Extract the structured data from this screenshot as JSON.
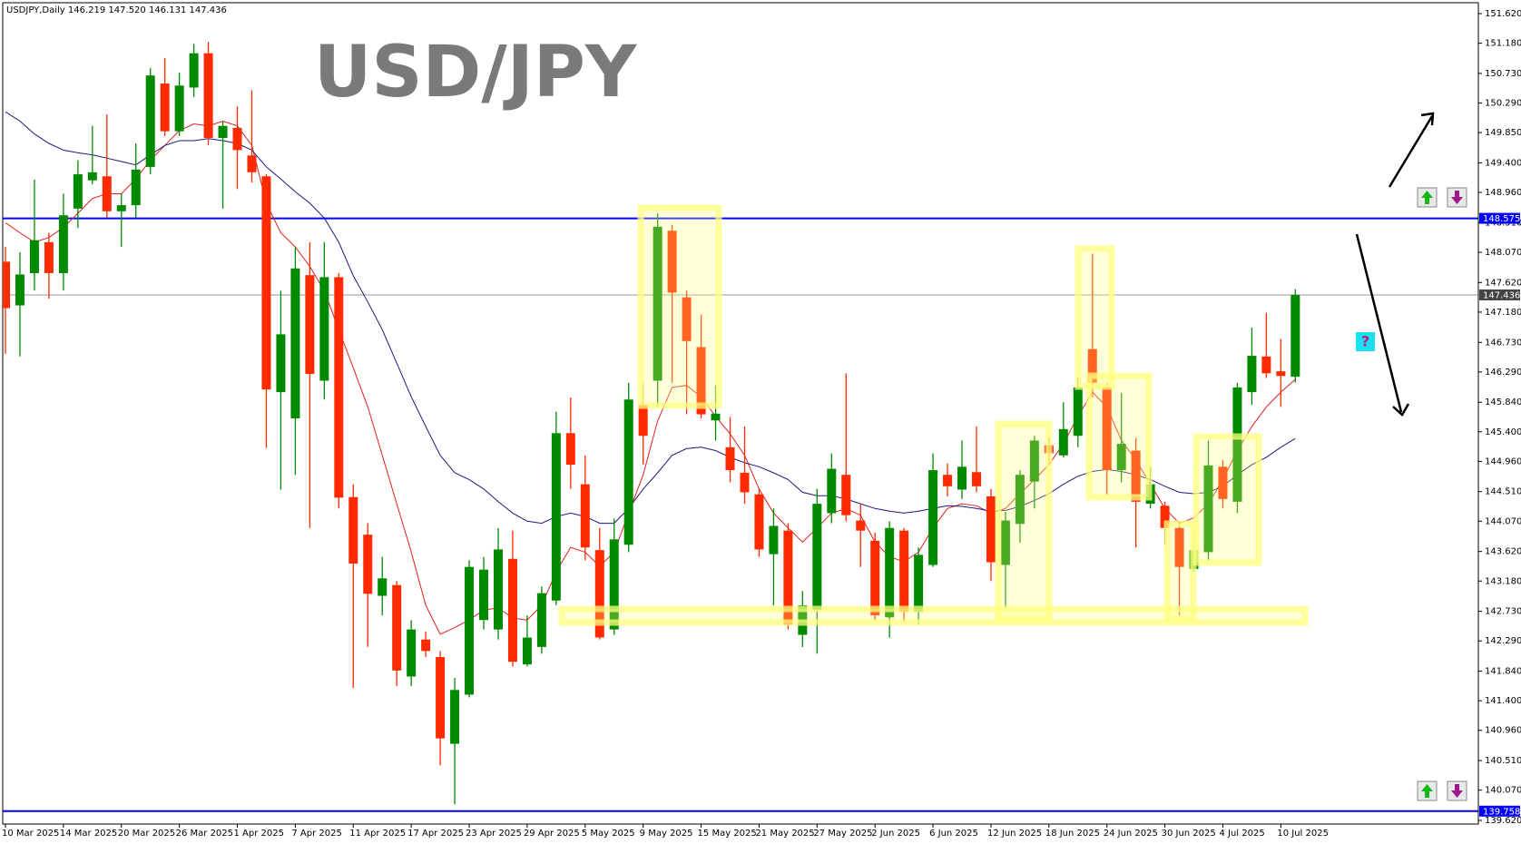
{
  "chart_data": {
    "type": "candlestick",
    "title": "USD/JPY",
    "subtitle": "USDJPY,Daily  146.219 147.520 146.131 147.436",
    "categories": [
      "10 Mar 2025",
      null,
      null,
      null,
      "14 Mar 2025",
      null,
      null,
      null,
      "20 Mar 2025",
      null,
      null,
      null,
      "26 Mar 2025",
      null,
      null,
      null,
      "1 Apr 2025",
      null,
      null,
      null,
      "7 Apr 2025",
      null,
      null,
      null,
      "11 Apr 2025",
      null,
      null,
      null,
      "17 Apr 2025",
      null,
      null,
      null,
      "23 Apr 2025",
      null,
      null,
      null,
      "29 Apr 2025",
      null,
      null,
      null,
      "5 May 2025",
      null,
      null,
      null,
      "9 May 2025",
      null,
      null,
      null,
      "15 May 2025",
      null,
      null,
      null,
      "21 May 2025",
      null,
      null,
      null,
      "27 May 2025",
      null,
      null,
      null,
      "2 Jun 2025",
      null,
      null,
      null,
      "6 Jun 2025",
      null,
      null,
      null,
      "12 Jun 2025",
      null,
      null,
      null,
      "18 Jun 2025",
      null,
      null,
      null,
      "24 Jun 2025",
      null,
      null,
      null,
      "30 Jun 2025",
      null,
      null,
      null,
      "4 Jul 2025",
      null,
      null,
      null,
      "10 Jul 2025",
      null
    ],
    "open": [
      147.93,
      147.28,
      147.76,
      148.22,
      147.76,
      148.72,
      149.14,
      149.2,
      148.68,
      148.77,
      149.34,
      150.58,
      149.87,
      150.52,
      151.03,
      149.77,
      149.92,
      149.51,
      149.2,
      145.99,
      145.6,
      147.73,
      146.16,
      147.7,
      144.43,
      143.87,
      142.96,
      143.12,
      141.76,
      142.31,
      142.05,
      140.76,
      141.49,
      142.6,
      142.46,
      143.51,
      141.94,
      142.2,
      142.89,
      145.38,
      144.62,
      143.64,
      142.46,
      143.72,
      145.8,
      146.16,
      148.39,
      147.4,
      146.66,
      145.57,
      145.17,
      144.79,
      144.47,
      143.58,
      143.93,
      142.38,
      142.75,
      144.19,
      144.76,
      144.08,
      143.78,
      142.64,
      143.93,
      142.72,
      143.42,
      144.76,
      144.54,
      144.8,
      144.44,
      143.42,
      144.03,
      144.66,
      145.2,
      145.05,
      145.34,
      146.63,
      146.06,
      144.83,
      145.12,
      144.33,
      144.3,
      143.97,
      143.36,
      143.61,
      144.88,
      144.36,
      145.99,
      146.52,
      146.3,
      146.219
    ],
    "high": [
      148.15,
      148.07,
      149.15,
      148.36,
      148.94,
      149.44,
      149.95,
      150.12,
      148.94,
      149.69,
      150.81,
      150.96,
      150.74,
      151.17,
      151.2,
      150.02,
      150.24,
      150.48,
      149.23,
      147.5,
      148.15,
      148.22,
      148.22,
      147.76,
      144.62,
      144.04,
      143.54,
      143.18,
      142.6,
      142.43,
      142.14,
      141.74,
      143.49,
      143.54,
      143.97,
      143.93,
      142.67,
      143.1,
      145.7,
      145.91,
      145.05,
      143.97,
      144.11,
      146.13,
      146.13,
      148.65,
      148.48,
      147.5,
      147.14,
      146.09,
      145.62,
      145.48,
      144.55,
      144.26,
      144.04,
      143.03,
      144.55,
      145.08,
      146.27,
      144.33,
      143.9,
      144.07,
      143.97,
      143.68,
      145.08,
      144.93,
      145.27,
      145.48,
      144.55,
      144.21,
      144.83,
      145.34,
      145.31,
      145.84,
      146.2,
      148.05,
      146.13,
      145.98,
      145.31,
      144.88,
      144.36,
      144.07,
      143.97,
      145.27,
      144.98,
      146.13,
      146.95,
      147.17,
      146.78,
      147.52
    ],
    "low": [
      146.56,
      146.52,
      147.5,
      147.38,
      147.5,
      148.43,
      149.08,
      148.58,
      148.15,
      148.58,
      149.23,
      149.8,
      149.8,
      150.38,
      149.66,
      148.72,
      149.01,
      149.11,
      145.16,
      144.54,
      144.76,
      143.97,
      145.88,
      144.26,
      141.59,
      142.2,
      142.67,
      141.62,
      141.62,
      142.05,
      140.44,
      139.86,
      141.45,
      142.46,
      142.31,
      141.91,
      141.91,
      142.1,
      142.82,
      144.55,
      143.49,
      142.31,
      142.38,
      143.61,
      144.91,
      145.77,
      146.13,
      145.66,
      145.6,
      145.27,
      144.65,
      144.33,
      143.54,
      142.82,
      142.46,
      142.2,
      142.1,
      144.04,
      144.07,
      143.39,
      142.6,
      142.34,
      142.57,
      142.53,
      143.39,
      144.44,
      144.4,
      144.5,
      143.18,
      142.77,
      143.75,
      144.26,
      144.91,
      145.02,
      145.17,
      145.91,
      144.47,
      144.65,
      143.68,
      144.26,
      143.72,
      142.67,
      143.32,
      143.49,
      144.26,
      144.19,
      145.8,
      146.2,
      145.77,
      146.131
    ],
    "close": [
      147.24,
      147.74,
      148.25,
      147.76,
      148.62,
      149.23,
      149.26,
      148.68,
      148.77,
      149.3,
      150.7,
      149.87,
      150.55,
      151.03,
      149.77,
      149.95,
      149.59,
      149.26,
      146.03,
      146.85,
      147.83,
      146.26,
      147.7,
      144.42,
      143.44,
      142.99,
      143.22,
      141.85,
      142.46,
      142.14,
      140.84,
      141.56,
      143.39,
      143.35,
      143.65,
      141.98,
      142.34,
      143.0,
      145.38,
      144.91,
      143.68,
      142.34,
      143.8,
      145.88,
      145.34,
      148.45,
      147.47,
      146.75,
      145.66,
      145.67,
      144.83,
      144.5,
      143.65,
      144.0,
      142.53,
      142.82,
      144.33,
      144.85,
      144.16,
      143.93,
      142.67,
      143.97,
      142.72,
      143.57,
      144.83,
      144.59,
      144.88,
      144.59,
      143.46,
      144.08,
      144.76,
      145.27,
      145.08,
      145.44,
      146.06,
      146.13,
      144.83,
      145.22,
      144.36,
      144.62,
      143.97,
      143.39,
      143.64,
      144.9,
      144.4,
      146.06,
      146.53,
      146.27,
      146.23,
      147.436
    ],
    "up_color": "#008a00",
    "down_color": "#ff2a00",
    "lines": [
      {
        "color": "#e0201a",
        "values": [
          148.51,
          148.36,
          148.22,
          148.29,
          148.44,
          148.65,
          148.87,
          148.94,
          148.94,
          149.16,
          149.44,
          149.66,
          149.88,
          149.98,
          149.95,
          150.02,
          149.95,
          149.66,
          148.8,
          148.36,
          148.15,
          147.86,
          147.5,
          146.92,
          146.35,
          145.77,
          145.05,
          144.33,
          143.61,
          142.82,
          142.39,
          142.49,
          142.6,
          142.75,
          142.78,
          142.63,
          142.6,
          142.82,
          143.32,
          143.68,
          143.61,
          143.4,
          143.61,
          144.19,
          144.76,
          145.56,
          146.06,
          146.09,
          145.92,
          145.63,
          145.37,
          145.05,
          144.55,
          144.19,
          143.97,
          143.76,
          143.97,
          144.19,
          144.26,
          144.16,
          143.76,
          143.54,
          143.47,
          143.61,
          143.97,
          144.26,
          144.33,
          144.3,
          144.19,
          144.26,
          144.48,
          144.69,
          144.91,
          145.22,
          145.63,
          145.99,
          145.77,
          145.27,
          144.98,
          144.62,
          144.26,
          144.04,
          144.12,
          144.33,
          144.69,
          145.12,
          145.48,
          145.77,
          145.99,
          146.18
        ]
      },
      {
        "color": "#1a1a80",
        "values": [
          150.16,
          150.02,
          149.83,
          149.69,
          149.59,
          149.55,
          149.52,
          149.47,
          149.42,
          149.37,
          149.52,
          149.66,
          149.73,
          149.73,
          149.76,
          149.73,
          149.69,
          149.59,
          149.34,
          149.16,
          148.97,
          148.8,
          148.58,
          148.22,
          147.72,
          147.33,
          146.92,
          146.42,
          145.92,
          145.48,
          145.05,
          144.79,
          144.69,
          144.55,
          144.36,
          144.19,
          144.07,
          144.04,
          144.14,
          144.19,
          144.14,
          144.04,
          144.04,
          144.26,
          144.55,
          144.79,
          145.05,
          145.15,
          145.17,
          145.12,
          145.02,
          144.94,
          144.88,
          144.79,
          144.69,
          144.5,
          144.45,
          144.45,
          144.4,
          144.33,
          144.26,
          144.22,
          144.19,
          144.22,
          144.26,
          144.3,
          144.29,
          144.26,
          144.22,
          144.23,
          144.29,
          144.38,
          144.48,
          144.62,
          144.74,
          144.81,
          144.84,
          144.81,
          144.76,
          144.69,
          144.59,
          144.5,
          144.48,
          144.5,
          144.59,
          144.76,
          144.91,
          145.02,
          145.17,
          145.3
        ]
      }
    ],
    "hlines": [
      {
        "value": 148.575,
        "label": "148.575",
        "color": "#0000ff"
      },
      {
        "value": 147.436,
        "label": "147.436",
        "color": "#9a9a9a"
      },
      {
        "value": 139.758,
        "label": "139.758",
        "color": "#0000ff"
      }
    ],
    "ylim": [
      139.62,
      151.62
    ],
    "yticks": [
      {
        "value": 151.62,
        "label": "151.620"
      },
      {
        "value": 151.18,
        "label": "151.180"
      },
      {
        "value": 150.73,
        "label": "150.730"
      },
      {
        "value": 150.29,
        "label": "150.290"
      },
      {
        "value": 149.85,
        "label": "149.850"
      },
      {
        "value": 149.4,
        "label": "149.400"
      },
      {
        "value": 148.96,
        "label": "148.960"
      },
      {
        "value": 148.51,
        "label": "148.510"
      },
      {
        "value": 148.07,
        "label": "148.070"
      },
      {
        "value": 147.62,
        "label": "147.620"
      },
      {
        "value": 147.18,
        "label": "147.180"
      },
      {
        "value": 146.73,
        "label": "146.730"
      },
      {
        "value": 146.29,
        "label": "146.290"
      },
      {
        "value": 145.84,
        "label": "145.840"
      },
      {
        "value": 145.4,
        "label": "145.400"
      },
      {
        "value": 144.96,
        "label": "144.960"
      },
      {
        "value": 144.51,
        "label": "144.510"
      },
      {
        "value": 144.07,
        "label": "144.070"
      },
      {
        "value": 143.62,
        "label": "143.620"
      },
      {
        "value": 143.18,
        "label": "143.180"
      },
      {
        "value": 142.73,
        "label": "142.730"
      },
      {
        "value": 142.29,
        "label": "142.290"
      },
      {
        "value": 141.84,
        "label": "141.840"
      },
      {
        "value": 141.4,
        "label": "141.400"
      },
      {
        "value": 140.96,
        "label": "140.960"
      },
      {
        "value": 140.51,
        "label": "140.510"
      },
      {
        "value": 140.07,
        "label": "140.070"
      },
      {
        "value": 139.62,
        "label": "139.620"
      }
    ],
    "grid": false,
    "annotation_icon": "?"
  }
}
